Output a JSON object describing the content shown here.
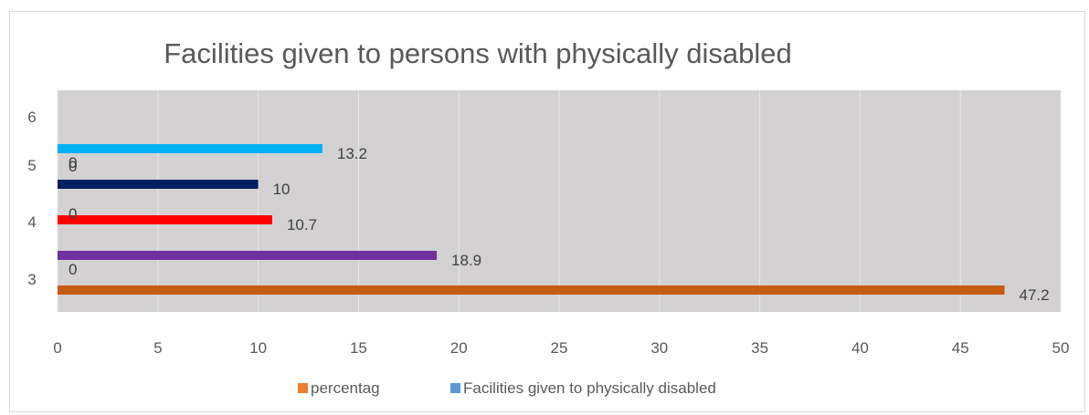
{
  "chart_data": {
    "type": "bar",
    "orientation": "horizontal",
    "title": "Facilities given to persons with physically disabled",
    "xlim": [
      0,
      50
    ],
    "x_ticks": [
      "0",
      "5",
      "10",
      "15",
      "20",
      "25",
      "30",
      "35",
      "40",
      "45",
      "50"
    ],
    "y_ticks": [
      "3",
      "4",
      "5",
      "6"
    ],
    "grid": true,
    "plot_background": "#d3d1d2",
    "bars": [
      {
        "value": 47.2,
        "label": "47.2",
        "color": "#c55a11"
      },
      {
        "value": 18.9,
        "label": "18.9",
        "color": "#7030a0"
      },
      {
        "value": 10.7,
        "label": "10.7",
        "color": "#ff0000"
      },
      {
        "value": 10,
        "label": "10",
        "color": "#002060"
      },
      {
        "value": 13.2,
        "label": "13.2",
        "color": "#00b0f0"
      }
    ],
    "zero_labels": [
      "0",
      "0",
      "0",
      "0",
      "0"
    ],
    "legend": {
      "position": "bottom",
      "entries": [
        {
          "name": "percentag",
          "color": "#ed7d31"
        },
        {
          "name": "Facilities given to physically disabled",
          "color": "#5b9bd5"
        }
      ]
    }
  }
}
